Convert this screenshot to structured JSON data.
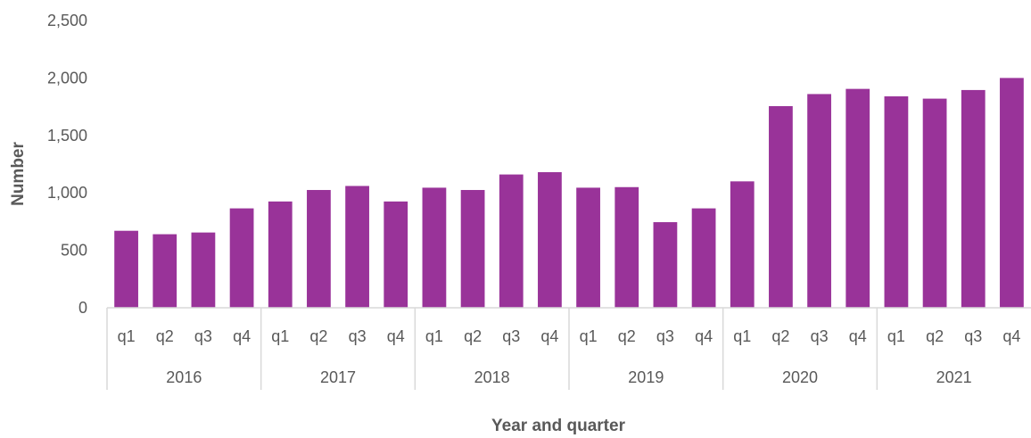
{
  "chart_data": {
    "type": "bar",
    "title": "",
    "xlabel": "Year and quarter",
    "ylabel": "Number",
    "ylim": [
      0,
      2500
    ],
    "yticks": [
      0,
      500,
      1000,
      1500,
      2000,
      2500
    ],
    "ytick_labels": [
      "0",
      "500",
      "1,000",
      "1,500",
      "2,000",
      "2,500"
    ],
    "grid": false,
    "legend": "none",
    "bar_color": "#993399",
    "axis_color": "#d9d9d9",
    "groups": [
      {
        "label": "2016",
        "categories": [
          "q1",
          "q2",
          "q3",
          "q4"
        ]
      },
      {
        "label": "2017",
        "categories": [
          "q1",
          "q2",
          "q3",
          "q4"
        ]
      },
      {
        "label": "2018",
        "categories": [
          "q1",
          "q2",
          "q3",
          "q4"
        ]
      },
      {
        "label": "2019",
        "categories": [
          "q1",
          "q2",
          "q3",
          "q4"
        ]
      },
      {
        "label": "2020",
        "categories": [
          "q1",
          "q2",
          "q3",
          "q4"
        ]
      },
      {
        "label": "2021",
        "categories": [
          "q1",
          "q2",
          "q3",
          "q4"
        ]
      }
    ],
    "values": [
      670,
      640,
      655,
      865,
      925,
      1025,
      1060,
      925,
      1045,
      1025,
      1160,
      1180,
      1045,
      1050,
      745,
      865,
      1100,
      1755,
      1860,
      1905,
      1840,
      1820,
      1895,
      2000
    ]
  }
}
